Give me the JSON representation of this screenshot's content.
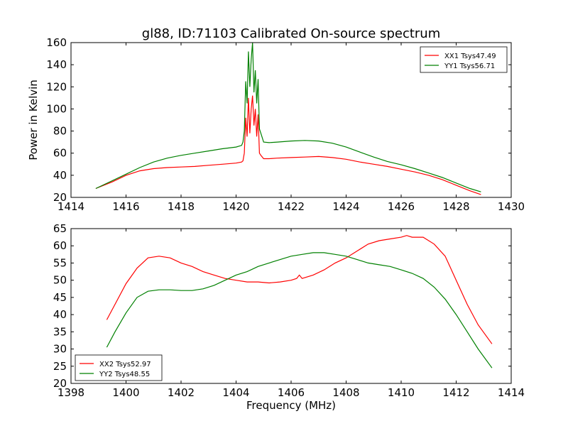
{
  "figure_title": "gl88, ID:71103 Calibrated On-source spectrum",
  "colors": {
    "red": "#ff0000",
    "green": "#008000"
  },
  "chart_data": [
    {
      "type": "line",
      "title": "gl88, ID:71103 Calibrated On-source spectrum",
      "xlabel": "",
      "ylabel": "Power in Kelvin",
      "xlim": [
        1414,
        1430
      ],
      "ylim": [
        20,
        160
      ],
      "xticks": [
        1414,
        1416,
        1418,
        1420,
        1422,
        1424,
        1426,
        1428,
        1430
      ],
      "yticks": [
        20,
        40,
        60,
        80,
        100,
        120,
        140,
        160
      ],
      "grid": false,
      "legend_position": "top-right",
      "series": [
        {
          "name": "XX1 Tsys47.49",
          "color": "#ff0000",
          "x": [
            1414.9,
            1415.5,
            1416,
            1416.5,
            1417,
            1417.5,
            1418,
            1418.5,
            1419,
            1419.5,
            1420,
            1420.2,
            1420.25,
            1420.3,
            1420.35,
            1420.4,
            1420.45,
            1420.5,
            1420.55,
            1420.6,
            1420.65,
            1420.7,
            1420.75,
            1420.8,
            1420.85,
            1420.9,
            1421,
            1421.2,
            1421.5,
            1422,
            1422.5,
            1423,
            1423.5,
            1424,
            1424.5,
            1425,
            1425.5,
            1426,
            1426.5,
            1427,
            1427.5,
            1428,
            1428.5,
            1428.9
          ],
          "y": [
            28,
            34,
            40,
            44,
            46,
            47,
            47.5,
            48,
            49,
            50,
            51,
            52,
            53,
            60,
            92,
            75,
            110,
            78,
            100,
            112,
            85,
            100,
            75,
            95,
            60,
            58,
            55,
            55,
            55.5,
            56,
            56.5,
            57,
            56,
            54.5,
            52,
            50,
            48,
            45.5,
            43,
            40,
            36,
            31,
            26,
            22.5
          ]
        },
        {
          "name": "YY1 Tsys56.71",
          "color": "#008000",
          "x": [
            1414.9,
            1415.5,
            1416,
            1416.5,
            1417,
            1417.5,
            1418,
            1418.5,
            1419,
            1419.5,
            1420,
            1420.2,
            1420.25,
            1420.3,
            1420.35,
            1420.4,
            1420.45,
            1420.5,
            1420.55,
            1420.6,
            1420.65,
            1420.7,
            1420.75,
            1420.8,
            1420.85,
            1420.9,
            1421,
            1421.2,
            1421.5,
            1422,
            1422.5,
            1423,
            1423.5,
            1424,
            1424.5,
            1425,
            1425.5,
            1426,
            1426.5,
            1427,
            1427.5,
            1428,
            1428.5,
            1428.9
          ],
          "y": [
            28,
            35,
            41,
            47,
            52,
            55.5,
            58,
            60,
            62,
            64,
            65.5,
            67,
            70,
            80,
            125,
            105,
            152,
            120,
            145,
            160,
            115,
            135,
            105,
            127,
            82,
            78,
            70,
            69.5,
            70,
            71,
            71.5,
            71,
            69,
            65.5,
            61,
            56.5,
            52.5,
            49.5,
            46,
            42,
            38,
            33,
            28,
            25
          ]
        }
      ]
    },
    {
      "type": "line",
      "title": "",
      "xlabel": "Frequency (MHz)",
      "ylabel": "",
      "xlim": [
        1398,
        1414
      ],
      "ylim": [
        20,
        65
      ],
      "xticks": [
        1398,
        1400,
        1402,
        1404,
        1406,
        1408,
        1410,
        1412,
        1414
      ],
      "yticks": [
        20,
        25,
        30,
        35,
        40,
        45,
        50,
        55,
        60,
        65
      ],
      "grid": false,
      "legend_position": "bottom-left",
      "series": [
        {
          "name": "XX2 Tsys52.97",
          "color": "#ff0000",
          "x": [
            1399.3,
            1399.6,
            1400,
            1400.4,
            1400.8,
            1401.2,
            1401.6,
            1402,
            1402.4,
            1402.8,
            1403.2,
            1403.6,
            1404,
            1404.4,
            1404.8,
            1405.2,
            1405.6,
            1406,
            1406.2,
            1406.3,
            1406.4,
            1406.8,
            1407.2,
            1407.6,
            1408,
            1408.4,
            1408.8,
            1409.2,
            1409.6,
            1410,
            1410.2,
            1410.4,
            1410.8,
            1411.2,
            1411.6,
            1412,
            1412.4,
            1412.8,
            1413.3
          ],
          "y": [
            38.5,
            43,
            49,
            53.5,
            56.5,
            57,
            56.5,
            55,
            54,
            52.5,
            51.5,
            50.5,
            50,
            49.5,
            49.5,
            49.2,
            49.5,
            50,
            50.5,
            51.5,
            50.5,
            51.5,
            53,
            55,
            56.5,
            58.5,
            60.5,
            61.5,
            62,
            62.5,
            63,
            62.5,
            62.5,
            60.5,
            57,
            50,
            43,
            37,
            31.5
          ]
        },
        {
          "name": "YY2 Tsys48.55",
          "color": "#008000",
          "x": [
            1399.3,
            1399.6,
            1400,
            1400.4,
            1400.8,
            1401.2,
            1401.6,
            1402,
            1402.4,
            1402.8,
            1403.2,
            1403.6,
            1404,
            1404.4,
            1404.8,
            1405.2,
            1405.6,
            1406,
            1406.4,
            1406.8,
            1407.2,
            1407.6,
            1408,
            1408.4,
            1408.8,
            1409.2,
            1409.6,
            1410,
            1410.4,
            1410.8,
            1411.2,
            1411.6,
            1412,
            1412.4,
            1412.8,
            1413.3
          ],
          "y": [
            30.5,
            35,
            40.5,
            45,
            46.8,
            47.2,
            47.2,
            47,
            47,
            47.5,
            48.5,
            50,
            51.5,
            52.5,
            54,
            55,
            56,
            57,
            57.5,
            58,
            58,
            57.5,
            57,
            56,
            55,
            54.5,
            54,
            53,
            52,
            50.5,
            48,
            44.5,
            40,
            35,
            30,
            24.5
          ]
        }
      ]
    }
  ]
}
